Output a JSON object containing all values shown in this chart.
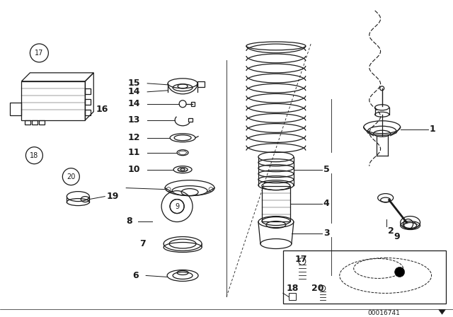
{
  "background": "#ffffff",
  "line_color": "#1a1a1a",
  "diagram_id": "00016741",
  "fig_w": 6.4,
  "fig_h": 4.48,
  "dpi": 100
}
